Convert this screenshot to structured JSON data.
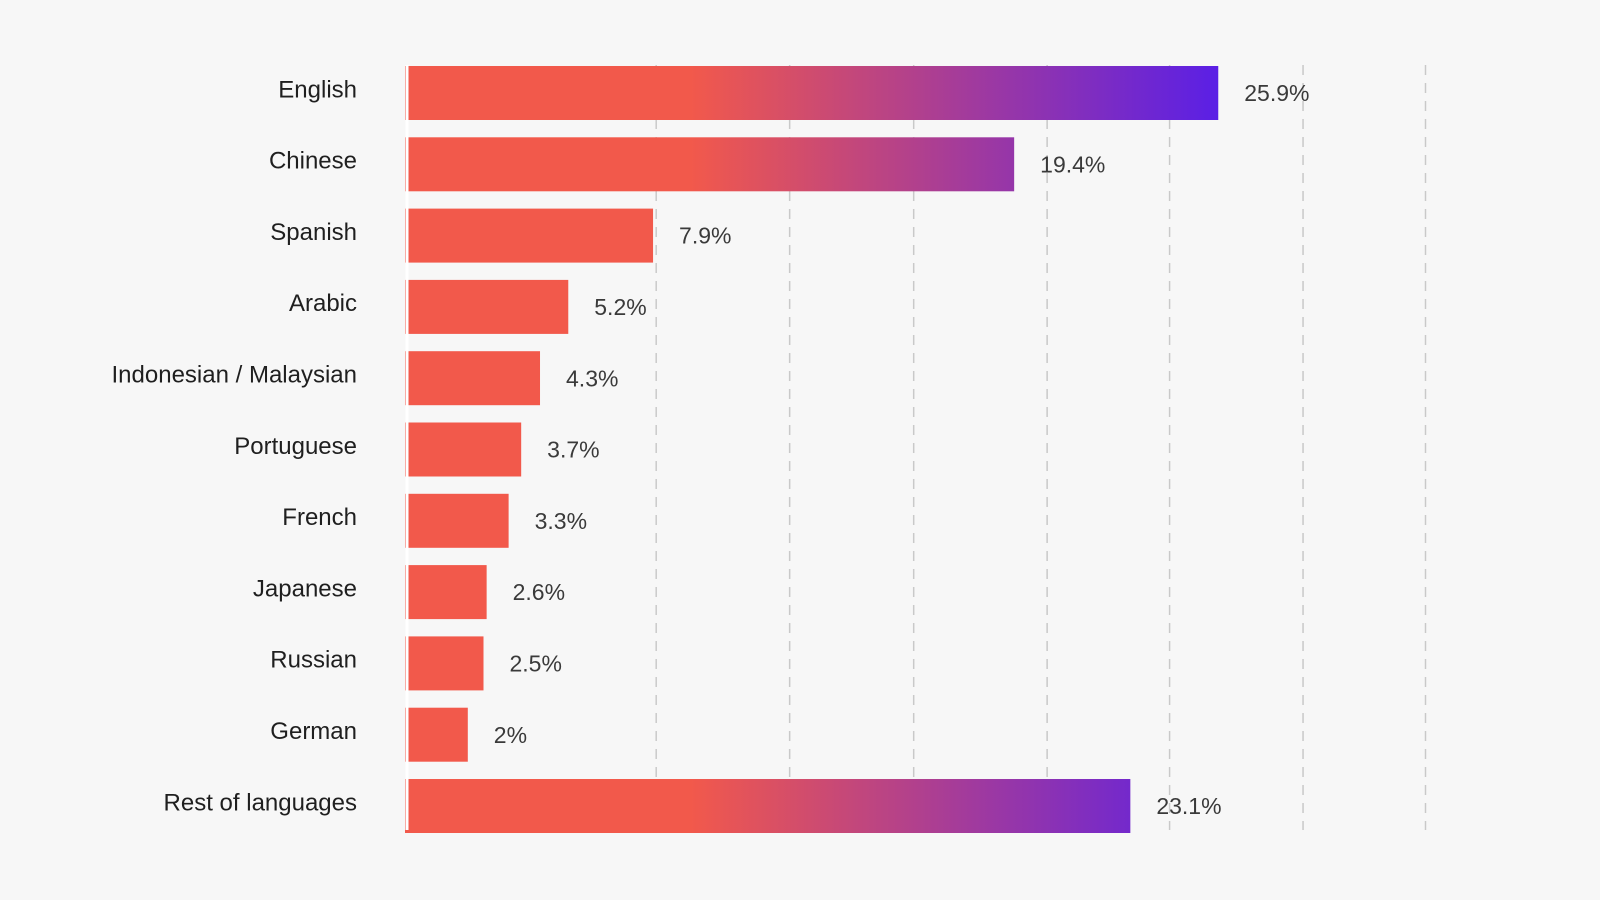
{
  "chart_data": {
    "type": "bar",
    "orientation": "horizontal",
    "categories": [
      "English",
      "Chinese",
      "Spanish",
      "Arabic",
      "Indonesian / Malaysian",
      "Portuguese",
      "French",
      "Japanese",
      "Russian",
      "German",
      "Rest of languages"
    ],
    "values": [
      25.9,
      19.4,
      7.9,
      5.2,
      4.3,
      3.7,
      3.3,
      2.6,
      2.5,
      2,
      23.1
    ],
    "value_labels": [
      "25.9%",
      "19.4%",
      "7.9%",
      "5.2%",
      "4.3%",
      "3.7%",
      "3.3%",
      "2.6%",
      "2.5%",
      "2%",
      "23.1%"
    ],
    "unit": "%",
    "xlim": [
      0,
      35
    ],
    "grid": true,
    "legend": "none",
    "colors": {
      "bar_start": "#f2594b",
      "bar_end": "#5a1fe6",
      "background": "#f7f7f7",
      "grid": "#c9c9c9"
    }
  }
}
